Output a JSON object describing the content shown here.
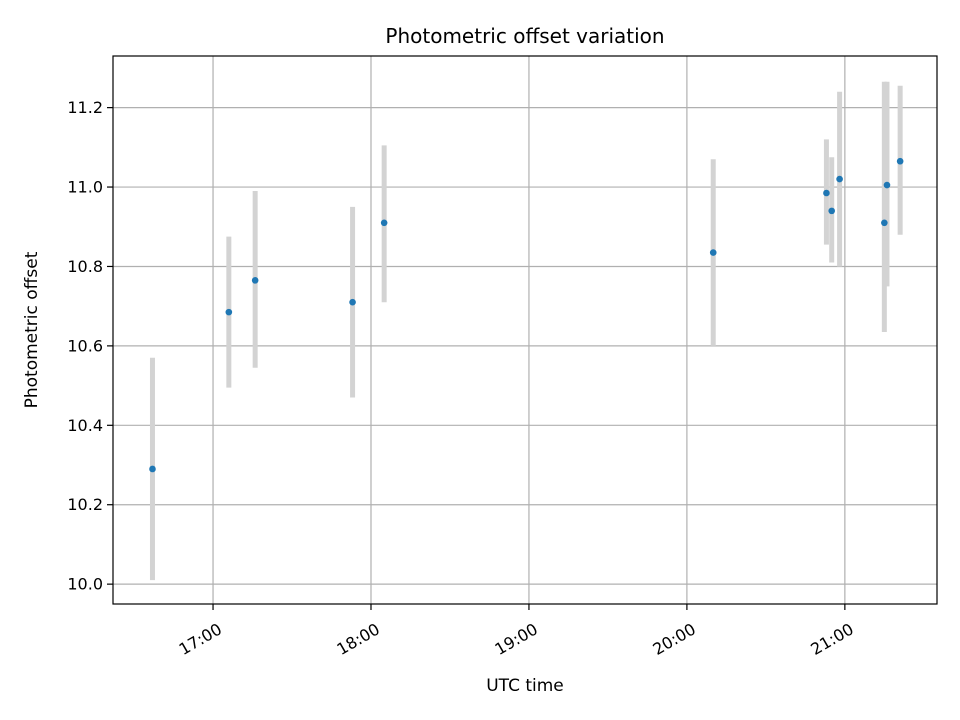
{
  "chart_data": {
    "type": "scatter",
    "title": "Photometric offset variation",
    "xlabel": "UTC time",
    "ylabel": "Photometric offset",
    "x_unit": "UTC time of day (HH:MM)",
    "xlim": [
      "16:22",
      "21:35"
    ],
    "ylim": [
      9.95,
      11.33
    ],
    "x_ticks": [
      "17:00",
      "18:00",
      "19:00",
      "20:00",
      "21:00"
    ],
    "y_ticks": [
      10.0,
      10.2,
      10.4,
      10.6,
      10.8,
      11.0,
      11.2
    ],
    "y_tick_labels": [
      "10.0",
      "10.2",
      "10.4",
      "10.6",
      "10.8",
      "11.0",
      "11.2"
    ],
    "grid": true,
    "marker_color": "#1f77b4",
    "errorbar_color": "#d3d3d3",
    "points": [
      {
        "x": "16:37",
        "y": 10.29,
        "ylo": 10.01,
        "yhi": 10.57
      },
      {
        "x": "17:06",
        "y": 10.685,
        "ylo": 10.495,
        "yhi": 10.875
      },
      {
        "x": "17:16",
        "y": 10.765,
        "ylo": 10.545,
        "yhi": 10.99
      },
      {
        "x": "17:53",
        "y": 10.71,
        "ylo": 10.47,
        "yhi": 10.95
      },
      {
        "x": "18:05",
        "y": 10.91,
        "ylo": 10.71,
        "yhi": 11.105
      },
      {
        "x": "20:10",
        "y": 10.835,
        "ylo": 10.6,
        "yhi": 11.07
      },
      {
        "x": "20:53",
        "y": 10.985,
        "ylo": 10.855,
        "yhi": 11.12
      },
      {
        "x": "20:55",
        "y": 10.94,
        "ylo": 10.81,
        "yhi": 11.075
      },
      {
        "x": "20:58",
        "y": 11.02,
        "ylo": 10.8,
        "yhi": 11.24
      },
      {
        "x": "21:15",
        "y": 10.91,
        "ylo": 10.635,
        "yhi": 11.265
      },
      {
        "x": "21:16",
        "y": 11.005,
        "ylo": 10.75,
        "yhi": 11.265
      },
      {
        "x": "21:21",
        "y": 11.065,
        "ylo": 10.88,
        "yhi": 11.255
      }
    ]
  }
}
